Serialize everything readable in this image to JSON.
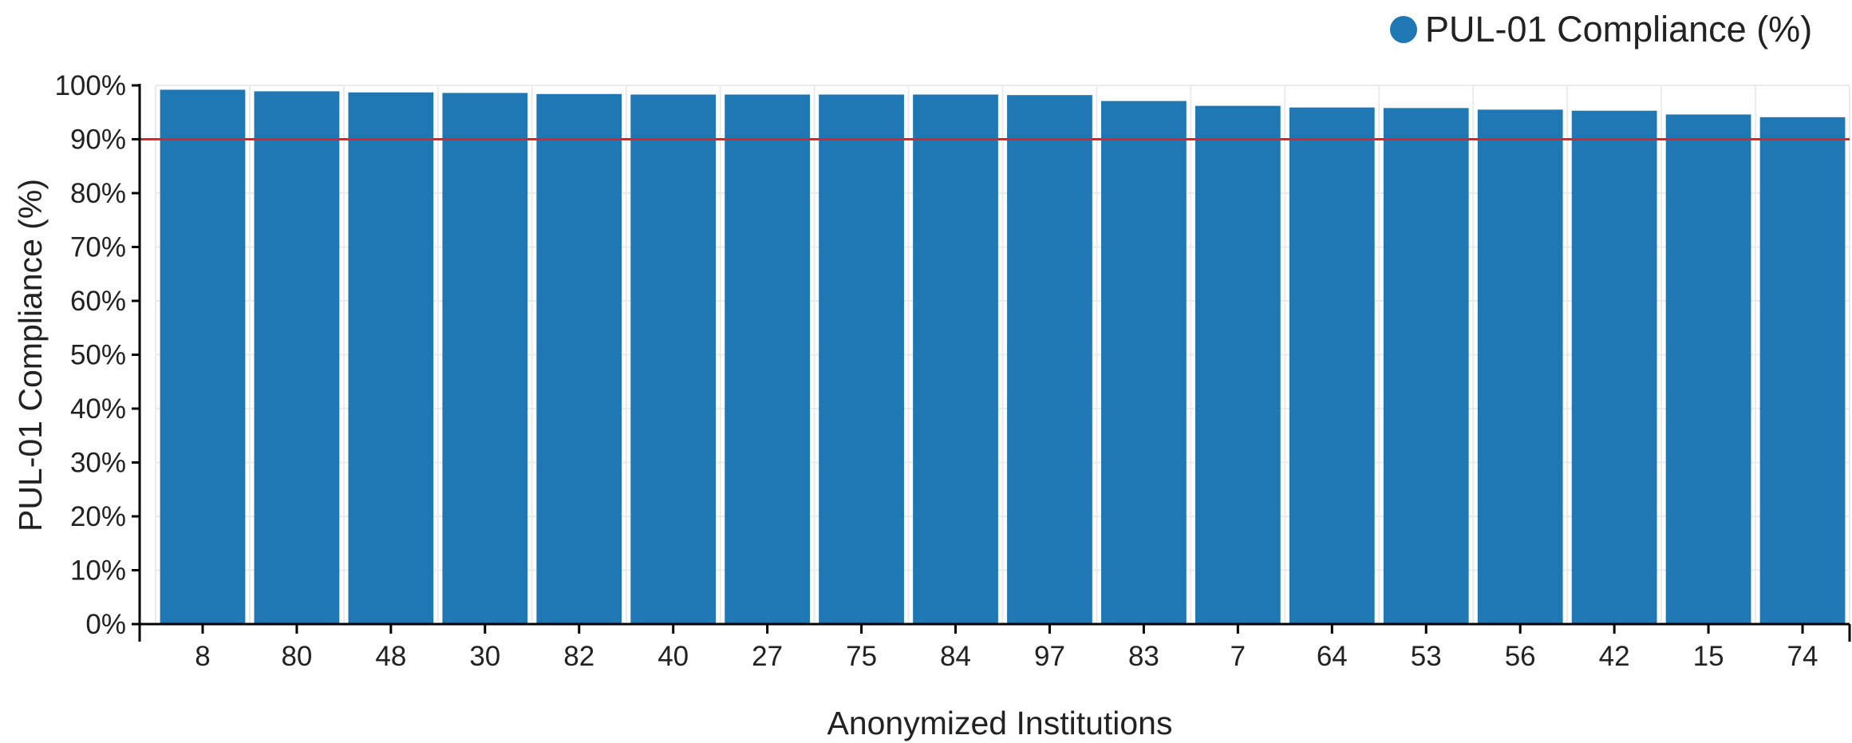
{
  "chart_data": {
    "type": "bar",
    "categories": [
      "8",
      "80",
      "48",
      "30",
      "82",
      "40",
      "27",
      "75",
      "84",
      "97",
      "83",
      "7",
      "64",
      "53",
      "56",
      "42",
      "15",
      "74"
    ],
    "series": [
      {
        "name": "PUL-01 Compliance (%)",
        "values": [
          99.2,
          98.9,
          98.7,
          98.6,
          98.4,
          98.3,
          98.3,
          98.3,
          98.3,
          98.2,
          97.1,
          96.2,
          95.9,
          95.8,
          95.5,
          95.3,
          94.6,
          94.1
        ]
      }
    ],
    "xlabel": "Anonymized Institutions",
    "ylabel": "PUL-01 Compliance (%)",
    "ylim": [
      0,
      100
    ],
    "yticks": [
      0,
      10,
      20,
      30,
      40,
      50,
      60,
      70,
      80,
      90,
      100
    ],
    "ytick_labels": [
      "0%",
      "10%",
      "20%",
      "30%",
      "40%",
      "50%",
      "60%",
      "70%",
      "80%",
      "90%",
      "100%"
    ],
    "threshold": 90,
    "grid": true,
    "legend_position": "top-right",
    "colors": {
      "bar": "#1f77b4",
      "threshold": "#e02424",
      "grid": "#ebebeb",
      "axis": "#000000"
    }
  }
}
